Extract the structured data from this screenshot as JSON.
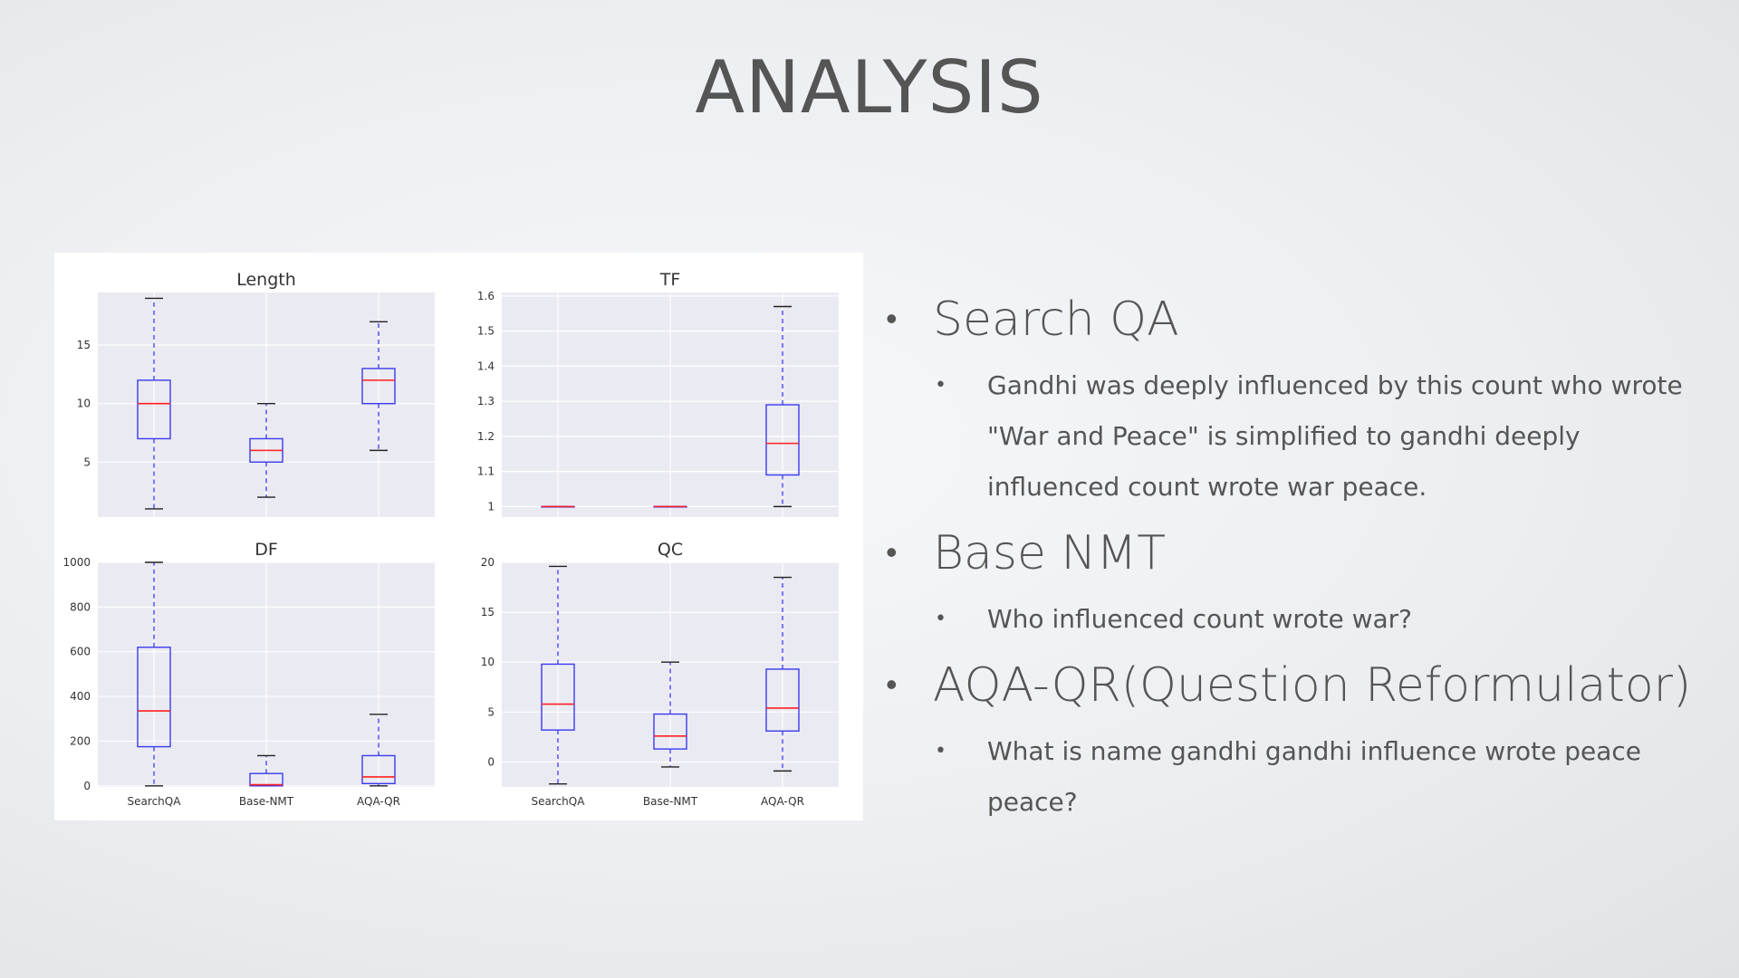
{
  "slide": {
    "title": "ANALYSIS"
  },
  "bullets": [
    {
      "label": "Search QA",
      "sub": [
        "Gandhi was deeply influenced by this count who wrote \"War and Peace\" is simplified to gandhi deeply influenced count wrote war peace."
      ]
    },
    {
      "label": "Base NMT",
      "sub": [
        "Who influenced count wrote war?"
      ]
    },
    {
      "label": "AQA-QR(Question Reformulator)",
      "sub": [
        "What is name gandhi gandhi influence wrote peace peace?"
      ]
    }
  ],
  "colors": {
    "box": "#3b3bf0",
    "median": "#ff2020",
    "panel_bg": "#eaeaf2",
    "grid": "#ffffff"
  },
  "chart_data": [
    {
      "type": "boxplot",
      "title": "Length",
      "categories": [
        "SearchQA",
        "Base-NMT",
        "AQA-QR"
      ],
      "ylim": [
        0.3,
        19.5
      ],
      "yticks": [
        5,
        10,
        15
      ],
      "boxes": [
        {
          "whislo": 1,
          "q1": 7,
          "med": 10,
          "q3": 12,
          "whishi": 19
        },
        {
          "whislo": 2,
          "q1": 5,
          "med": 6,
          "q3": 7,
          "whishi": 10
        },
        {
          "whislo": 6,
          "q1": 10,
          "med": 12,
          "q3": 13,
          "whishi": 17
        }
      ],
      "show_xticks": false
    },
    {
      "type": "boxplot",
      "title": "TF",
      "categories": [
        "SearchQA",
        "Base-NMT",
        "AQA-QR"
      ],
      "ylim": [
        0.97,
        1.61
      ],
      "yticks": [
        1.0,
        1.1,
        1.2,
        1.3,
        1.4,
        1.5,
        1.6
      ],
      "boxes": [
        {
          "whislo": 1.0,
          "q1": 1.0,
          "med": 1.0,
          "q3": 1.0,
          "whishi": 1.0
        },
        {
          "whislo": 1.0,
          "q1": 1.0,
          "med": 1.0,
          "q3": 1.0,
          "whishi": 1.0
        },
        {
          "whislo": 1.0,
          "q1": 1.09,
          "med": 1.18,
          "q3": 1.29,
          "whishi": 1.57
        }
      ],
      "show_xticks": false
    },
    {
      "type": "boxplot",
      "title": "DF",
      "categories": [
        "SearchQA",
        "Base-NMT",
        "AQA-QR"
      ],
      "ylim": [
        -5,
        1000
      ],
      "yticks": [
        0,
        200,
        400,
        600,
        800,
        1000
      ],
      "boxes": [
        {
          "whislo": 0,
          "q1": 175,
          "med": 335,
          "q3": 620,
          "whishi": 1000
        },
        {
          "whislo": 0,
          "q1": 0,
          "med": 5,
          "q3": 55,
          "whishi": 135
        },
        {
          "whislo": 0,
          "q1": 10,
          "med": 40,
          "q3": 135,
          "whishi": 320
        }
      ],
      "show_xticks": true
    },
    {
      "type": "boxplot",
      "title": "QC",
      "categories": [
        "SearchQA",
        "Base-NMT",
        "AQA-QR"
      ],
      "ylim": [
        -2.5,
        20
      ],
      "yticks": [
        0,
        5,
        10,
        15,
        20
      ],
      "boxes": [
        {
          "whislo": -2.2,
          "q1": 3.2,
          "med": 5.8,
          "q3": 9.8,
          "whishi": 19.6
        },
        {
          "whislo": -0.5,
          "q1": 1.3,
          "med": 2.6,
          "q3": 4.8,
          "whishi": 10
        },
        {
          "whislo": -0.9,
          "q1": 3.1,
          "med": 5.4,
          "q3": 9.3,
          "whishi": 18.5
        }
      ],
      "show_xticks": true
    }
  ]
}
